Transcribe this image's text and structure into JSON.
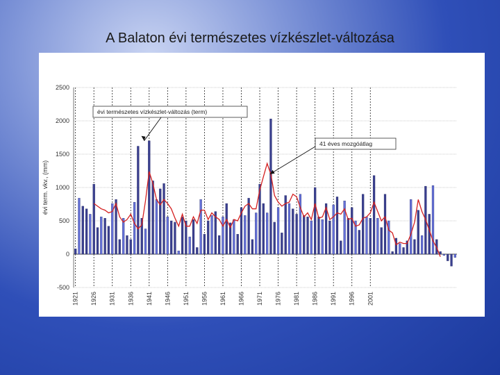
{
  "slide": {
    "title": "A Balaton évi természetes vízkészlet-változása"
  },
  "chart_data": {
    "type": "bar",
    "title": "",
    "xlabel": "",
    "ylabel": "évi term. vkv., (mm)",
    "ylim": [
      -500,
      2500
    ],
    "yticks": [
      -500,
      0,
      500,
      1000,
      1500,
      2000,
      2500
    ],
    "grid": true,
    "x": [
      1921,
      1922,
      1923,
      1924,
      1925,
      1926,
      1927,
      1928,
      1929,
      1930,
      1931,
      1932,
      1933,
      1934,
      1935,
      1936,
      1937,
      1938,
      1939,
      1940,
      1941,
      1942,
      1943,
      1944,
      1945,
      1946,
      1947,
      1948,
      1949,
      1950,
      1951,
      1952,
      1953,
      1954,
      1955,
      1956,
      1957,
      1958,
      1959,
      1960,
      1961,
      1962,
      1963,
      1964,
      1965,
      1966,
      1967,
      1968,
      1969,
      1970,
      1971,
      1972,
      1973,
      1974,
      1975,
      1976,
      1977,
      1978,
      1979,
      1980,
      1981,
      1982,
      1983,
      1984,
      1985,
      1986,
      1987,
      1988,
      1989,
      1990,
      1991,
      1992,
      1993,
      1994,
      1995,
      1996,
      1997,
      1998,
      1999,
      2000,
      2001,
      2002,
      2003,
      2004,
      2005,
      2006,
      2007,
      2008,
      2009,
      2010,
      2011,
      2012,
      2013,
      2014,
      2015,
      2016,
      2017,
      2018,
      2019,
      2020,
      2021,
      2022,
      2023,
      2024
    ],
    "x_tick_labels": [
      "1921",
      "1926",
      "1931",
      "1936",
      "1941",
      "1946",
      "1951",
      "1956",
      "1961",
      "1966",
      "1971",
      "1976",
      "1981",
      "1986",
      "1991",
      "1996",
      "2001"
    ],
    "series": [
      {
        "name": "évi természetes vízkészlet-változás (term)",
        "color": "#3a3f8f",
        "values": [
          80,
          840,
          720,
          680,
          600,
          1050,
          400,
          560,
          540,
          420,
          760,
          820,
          220,
          540,
          280,
          220,
          780,
          1620,
          540,
          380,
          1700,
          1100,
          820,
          980,
          1060,
          560,
          500,
          480,
          50,
          560,
          500,
          260,
          520,
          100,
          820,
          300,
          500,
          580,
          640,
          280,
          560,
          760,
          470,
          520,
          300,
          700,
          580,
          840,
          220,
          620,
          1050,
          760,
          620,
          2030,
          480,
          700,
          320,
          880,
          760,
          680,
          600,
          900,
          580,
          560,
          500,
          1000,
          560,
          520,
          760,
          500,
          740,
          860,
          200,
          800,
          540,
          700,
          500,
          360,
          900,
          560,
          540,
          1180,
          540,
          400,
          900,
          500,
          40,
          240,
          160,
          100,
          200,
          820,
          220,
          660,
          280,
          1020,
          600,
          1030,
          220,
          40,
          -20,
          -100,
          -180,
          -50
        ],
        "alt_color": "#6470d8"
      },
      {
        "name": "41 éves mozgóátlag",
        "color": "#d42020",
        "values": [
          null,
          null,
          null,
          null,
          null,
          760,
          720,
          680,
          660,
          620,
          640,
          760,
          560,
          480,
          520,
          600,
          460,
          380,
          440,
          800,
          1240,
          1060,
          820,
          740,
          820,
          760,
          680,
          540,
          420,
          600,
          420,
          420,
          560,
          460,
          660,
          660,
          520,
          620,
          560,
          520,
          420,
          520,
          400,
          520,
          500,
          620,
          720,
          760,
          680,
          680,
          960,
          1160,
          1360,
          1200,
          880,
          780,
          720,
          760,
          780,
          900,
          860,
          700,
          560,
          620,
          520,
          760,
          540,
          560,
          700,
          520,
          560,
          620,
          600,
          680,
          520,
          540,
          420,
          440,
          540,
          560,
          620,
          780,
          640,
          500,
          560,
          360,
          320,
          140,
          180,
          160,
          160,
          300,
          480,
          820,
          640,
          520,
          360,
          200,
          100,
          -40,
          null,
          null,
          null,
          null
        ]
      }
    ],
    "annotations": [
      "évi természetes vízkészlet-változás (term)",
      "41 éves mozgóátlag"
    ]
  }
}
